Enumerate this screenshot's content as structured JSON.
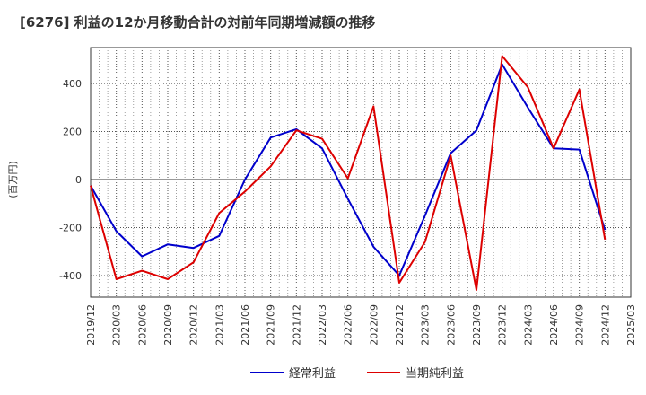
{
  "chart_data": {
    "type": "line",
    "title": "[6276]  利益の12か月移動合計の対前年同期増減額の推移",
    "ylabel": "(百万円)",
    "xlabel": "",
    "ylim": [
      -490,
      550
    ],
    "yticks": [
      -400,
      -200,
      0,
      200,
      400
    ],
    "ytick_labels": [
      "-400",
      "-200",
      "0",
      "200",
      "400"
    ],
    "x": [
      "2019/12",
      "2020/03",
      "2020/06",
      "2020/09",
      "2020/12",
      "2021/03",
      "2021/06",
      "2021/09",
      "2021/12",
      "2022/03",
      "2022/06",
      "2022/09",
      "2022/12",
      "2023/03",
      "2023/06",
      "2023/09",
      "2023/12",
      "2024/03",
      "2024/06",
      "2024/09",
      "2024/12",
      "2025/03"
    ],
    "grid": true,
    "legend_position": "bottom-center",
    "series": [
      {
        "name": "経常利益",
        "color": "#0000cc",
        "values": [
          -25,
          -215,
          -320,
          -270,
          -285,
          -235,
          0,
          175,
          210,
          130,
          -80,
          -280,
          -400,
          -150,
          110,
          205,
          480,
          300,
          130,
          125,
          -210,
          null
        ]
      },
      {
        "name": "当期純利益",
        "color": "#dd0000",
        "values": [
          -25,
          -415,
          -380,
          -415,
          -345,
          -140,
          -50,
          55,
          205,
          170,
          5,
          305,
          -430,
          -260,
          100,
          -460,
          515,
          385,
          130,
          375,
          -250,
          null
        ]
      }
    ]
  }
}
